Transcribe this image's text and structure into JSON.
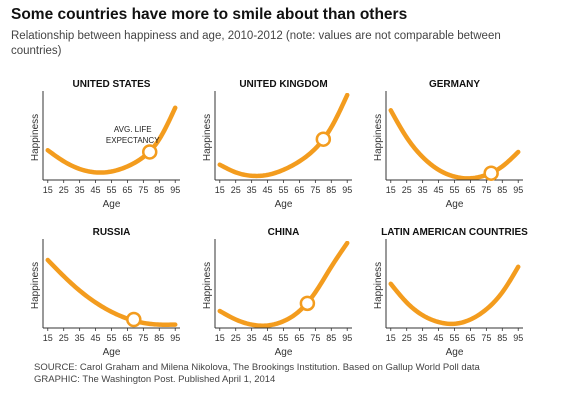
{
  "title": "Some countries have more to smile about than others",
  "subtitle": "Relationship between happiness and age, 2010-2012 (note: values are not comparable between countries)",
  "annotation": "AVG. LIFE\nEXPECTANCY",
  "source_line1": "SOURCE: Carol Graham and Milena Nikolova, The Brookings Institution. Based on Gallup World Poll data",
  "source_line2": "GRAPHIC: The Washington Post. Published April 1, 2014",
  "colors": {
    "curve": "#F39C1E",
    "marker_fill": "#ffffff",
    "axis": "#333333"
  },
  "chart_data": [
    {
      "type": "line",
      "title": "UNITED STATES",
      "xlabel": "Age",
      "ylabel": "Happiness",
      "x_ticks": [
        15,
        25,
        35,
        45,
        55,
        65,
        75,
        85,
        95
      ],
      "ylim": [
        0,
        1
      ],
      "x": [
        15,
        25,
        35,
        45,
        55,
        65,
        75,
        85,
        95
      ],
      "y": [
        0.35,
        0.22,
        0.13,
        0.09,
        0.1,
        0.16,
        0.27,
        0.48,
        0.85
      ],
      "marker": {
        "x": 79,
        "y": 0.33
      }
    },
    {
      "type": "line",
      "title": "UNITED KINGDOM",
      "xlabel": "Age",
      "ylabel": "Happiness",
      "x_ticks": [
        15,
        25,
        35,
        45,
        55,
        65,
        75,
        85,
        95
      ],
      "ylim": [
        0,
        1
      ],
      "x": [
        15,
        25,
        35,
        45,
        55,
        65,
        75,
        85,
        95
      ],
      "y": [
        0.18,
        0.09,
        0.05,
        0.06,
        0.12,
        0.22,
        0.37,
        0.62,
        1.0
      ],
      "marker": {
        "x": 80,
        "y": 0.48
      }
    },
    {
      "type": "line",
      "title": "GERMANY",
      "xlabel": "Age",
      "ylabel": "Happiness",
      "x_ticks": [
        15,
        25,
        35,
        45,
        55,
        65,
        75,
        85,
        95
      ],
      "ylim": [
        0,
        1
      ],
      "x": [
        15,
        25,
        35,
        45,
        55,
        65,
        75,
        85,
        95
      ],
      "y": [
        0.82,
        0.5,
        0.27,
        0.12,
        0.04,
        0.02,
        0.06,
        0.16,
        0.33
      ],
      "marker": {
        "x": 78,
        "y": 0.08
      }
    },
    {
      "type": "line",
      "title": "RUSSIA",
      "xlabel": "Age",
      "ylabel": "Happiness",
      "x_ticks": [
        15,
        25,
        35,
        45,
        55,
        65,
        75,
        85,
        95
      ],
      "ylim": [
        0,
        1
      ],
      "x": [
        15,
        25,
        35,
        45,
        55,
        65,
        75,
        85,
        95
      ],
      "y": [
        0.8,
        0.61,
        0.44,
        0.3,
        0.19,
        0.11,
        0.06,
        0.04,
        0.04
      ],
      "marker": {
        "x": 69,
        "y": 0.1
      }
    },
    {
      "type": "line",
      "title": "CHINA",
      "xlabel": "Age",
      "ylabel": "Happiness",
      "x_ticks": [
        15,
        25,
        35,
        45,
        55,
        65,
        75,
        85,
        95
      ],
      "ylim": [
        0,
        1
      ],
      "x": [
        15,
        25,
        35,
        45,
        55,
        65,
        75,
        85,
        95
      ],
      "y": [
        0.2,
        0.1,
        0.04,
        0.03,
        0.08,
        0.2,
        0.42,
        0.72,
        1.0
      ],
      "marker": {
        "x": 70,
        "y": 0.29
      }
    },
    {
      "type": "line",
      "title": "LATIN AMERICAN COUNTRIES",
      "xlabel": "Age",
      "ylabel": "Happiness",
      "x_ticks": [
        15,
        25,
        35,
        45,
        55,
        65,
        75,
        85,
        95
      ],
      "ylim": [
        0,
        1
      ],
      "x": [
        15,
        25,
        35,
        45,
        55,
        65,
        75,
        85,
        95
      ],
      "y": [
        0.52,
        0.3,
        0.15,
        0.07,
        0.05,
        0.1,
        0.22,
        0.42,
        0.72
      ],
      "marker": null
    }
  ]
}
